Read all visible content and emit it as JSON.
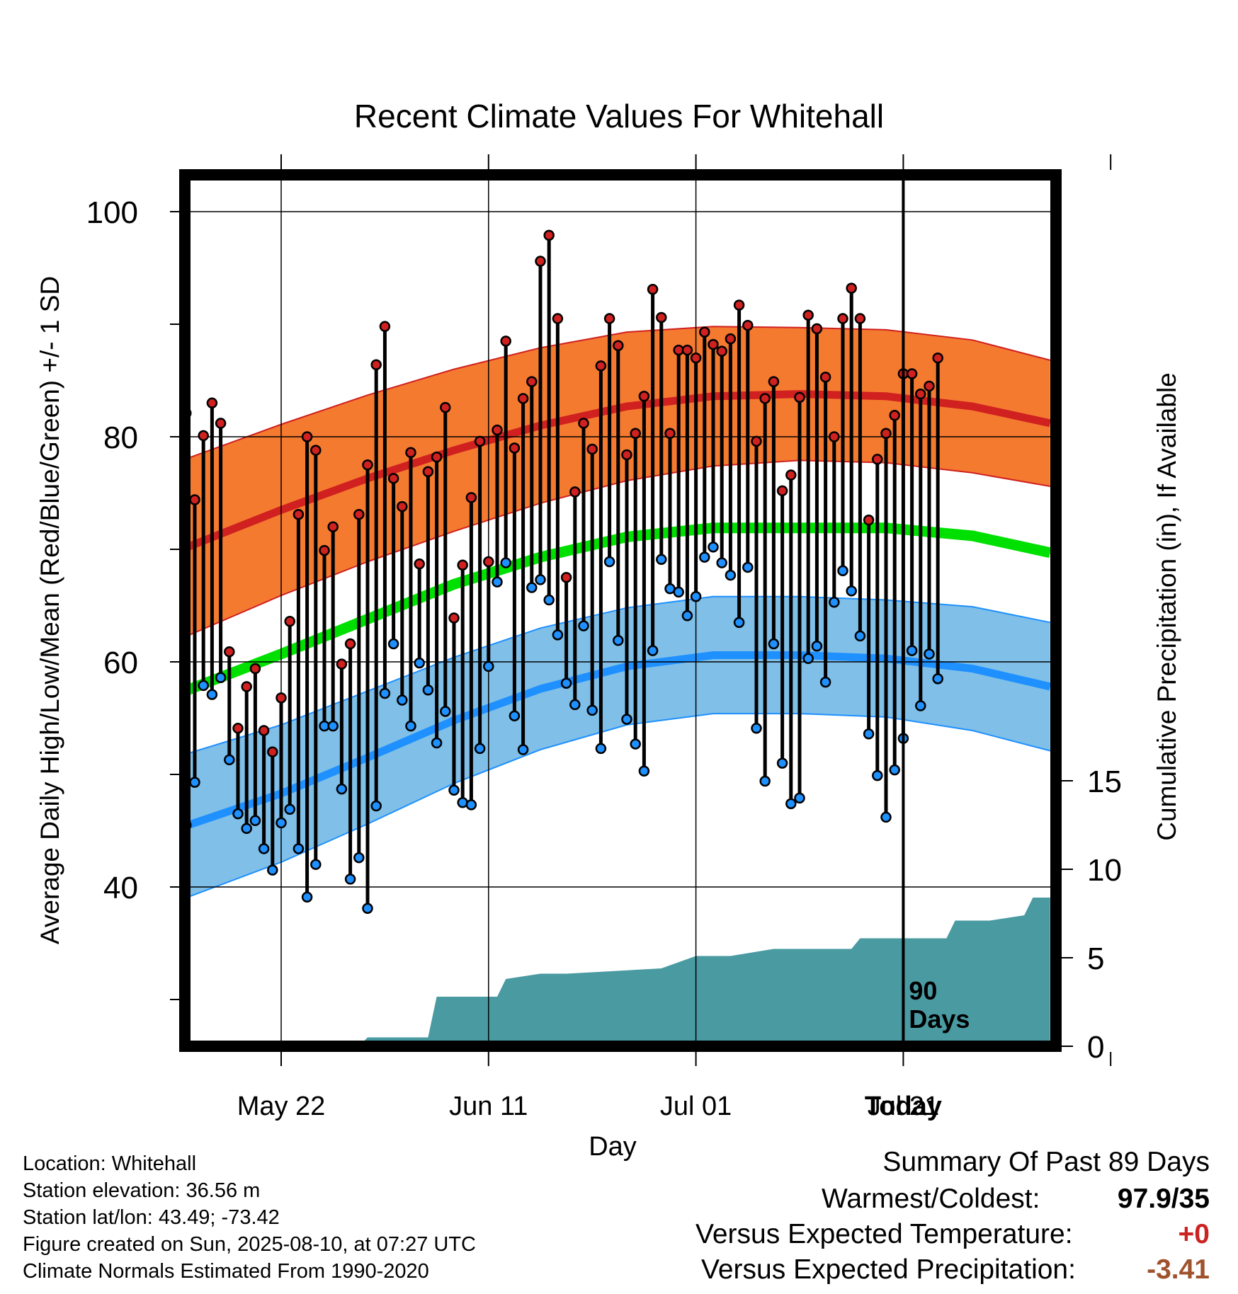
{
  "chart_data": {
    "type": "line",
    "title": "Recent Climate Values For Whitehall",
    "xlabel": "Day",
    "ylabel": "Average Daily High/Low/Mean (Red/Blue/Green) +/- 1 SD",
    "y2label": "Cumulative Precipitation (in), If Available",
    "x_ticks": [
      "May 22",
      "Jun 11",
      "Jul 01",
      "Jul 21",
      "Today"
    ],
    "y_ticks": [
      "40",
      "60",
      "80",
      "100"
    ],
    "y2_ticks": [
      "0",
      "5",
      "10",
      "15"
    ],
    "ylim": [
      25,
      103
    ],
    "y2lim": [
      0,
      49.5
    ],
    "xlim": [
      -11.5,
      89
    ],
    "grid": true,
    "today_marker": "90 Days",
    "today_marker_lines": [
      "90",
      "Days"
    ],
    "colors": {
      "high": "#d02020",
      "high_band": "#f47a30",
      "low": "#1e90ff",
      "low_band": "#7fbfe8",
      "mean": "#00e000",
      "precip": "#4a9aa2"
    },
    "normals": {
      "day": [
        -11.5,
        0,
        10,
        20,
        30,
        40,
        50,
        60,
        70,
        80,
        89
      ],
      "high_mean": [
        70.0,
        73.5,
        76.3,
        78.8,
        81.0,
        82.7,
        83.6,
        83.8,
        83.6,
        82.7,
        81.2
      ],
      "high_sd": [
        7.9,
        7.6,
        7.4,
        7.2,
        6.9,
        6.6,
        6.2,
        5.9,
        5.9,
        5.9,
        5.6
      ],
      "low_mean": [
        45.3,
        48.3,
        51.5,
        54.8,
        57.6,
        59.6,
        60.6,
        60.6,
        60.3,
        59.4,
        57.8
      ],
      "low_sd": [
        6.4,
        6.1,
        5.9,
        5.6,
        5.4,
        5.2,
        5.2,
        5.2,
        5.2,
        5.5,
        5.7
      ],
      "mean": [
        57.3,
        60.7,
        63.8,
        66.9,
        69.3,
        71.1,
        71.9,
        71.9,
        71.9,
        71.2,
        69.7
      ]
    },
    "daily_high": [
      79.7,
      82.1,
      74.4,
      80.1,
      83.0,
      81.2,
      60.9,
      54.1,
      57.8,
      59.4,
      53.9,
      52.0,
      56.8,
      63.6,
      73.1,
      80.0,
      78.8,
      69.9,
      72.0,
      59.8,
      61.6,
      73.1,
      77.5,
      86.4,
      89.8,
      76.3,
      73.8,
      78.6,
      68.7,
      76.9,
      78.2,
      82.6,
      63.9,
      68.6,
      74.6,
      79.6,
      68.9,
      80.6,
      88.5,
      79.0,
      83.4,
      84.9,
      95.6,
      97.9,
      90.5,
      67.5,
      75.1,
      81.2,
      78.9,
      86.3,
      90.5,
      88.1,
      78.4,
      80.3,
      83.6,
      93.1,
      90.6,
      80.3,
      87.7,
      87.7,
      87.0,
      89.3,
      88.2,
      87.6,
      88.7,
      91.7,
      89.9,
      79.6,
      83.4,
      84.9,
      75.2,
      76.6,
      83.5,
      90.8,
      89.6,
      85.3,
      80.0,
      90.5,
      93.2,
      90.5,
      72.6,
      78.0,
      80.3,
      81.9,
      85.6,
      85.6,
      83.8,
      84.5,
      87.0
    ],
    "daily_low": [
      34.9,
      45.5,
      49.3,
      57.9,
      57.1,
      58.6,
      51.3,
      46.5,
      45.2,
      45.9,
      43.4,
      41.5,
      45.7,
      46.9,
      43.4,
      39.1,
      42.0,
      54.3,
      54.3,
      48.7,
      40.7,
      42.6,
      38.1,
      47.2,
      57.2,
      61.6,
      56.6,
      54.3,
      59.9,
      57.5,
      52.8,
      55.6,
      48.6,
      47.5,
      47.3,
      52.3,
      59.6,
      67.1,
      68.8,
      55.2,
      52.2,
      66.6,
      67.3,
      65.5,
      62.4,
      58.1,
      56.2,
      63.2,
      55.7,
      52.3,
      68.9,
      61.9,
      54.9,
      52.7,
      50.3,
      61.0,
      69.1,
      66.5,
      66.2,
      64.1,
      65.8,
      69.3,
      70.2,
      68.8,
      67.7,
      63.5,
      68.4,
      54.1,
      49.4,
      61.6,
      51.0,
      47.4,
      47.9,
      60.3,
      61.4,
      58.2,
      65.3,
      68.1,
      66.3,
      62.3,
      53.6,
      49.9,
      46.2,
      50.4,
      53.2,
      61.0,
      56.1,
      60.7,
      58.5
    ],
    "precip_day": [
      0,
      9,
      10,
      17,
      18,
      25,
      26,
      30,
      33,
      44,
      48,
      52,
      57,
      66,
      67,
      77,
      78,
      82,
      86,
      87,
      89
    ],
    "precip_cum": [
      0,
      0,
      0.5,
      0.5,
      2.8,
      2.8,
      3.8,
      4.1,
      4.1,
      4.4,
      5.1,
      5.1,
      5.5,
      5.5,
      6.1,
      6.1,
      7.1,
      7.1,
      7.4,
      8.4,
      8.4
    ]
  },
  "info": {
    "location": "Location: Whitehall",
    "elevation": "Station elevation: 36.56 m",
    "latlon": "Station lat/lon: 43.49; -73.42",
    "created": "Figure created on Sun, 2025-08-10, at 07:27 UTC",
    "normals": "Climate Normals Estimated From 1990-2020"
  },
  "summary": {
    "title": "Summary Of Past 89 Days",
    "warm_label": "Warmest/Coldest:",
    "warm_value": "97.9/35",
    "temp_label": "Versus Expected Temperature:",
    "temp_value": "+0",
    "temp_color": "#cc2222",
    "precip_label": "Versus Expected Precipitation:",
    "precip_value": "-3.41",
    "precip_color": "#a0522d"
  }
}
